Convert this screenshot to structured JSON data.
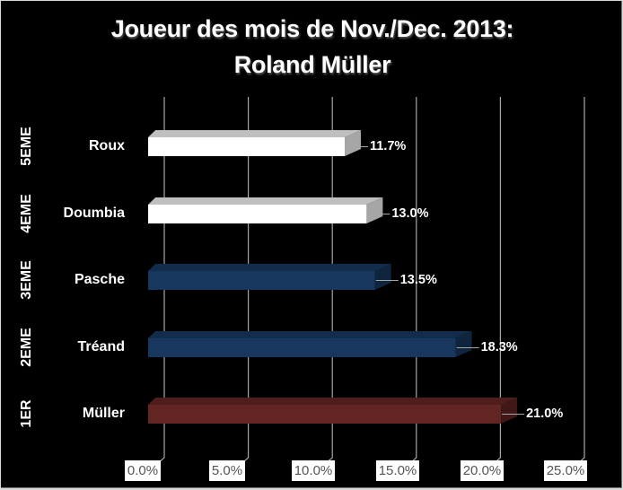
{
  "chart_data": {
    "type": "bar",
    "orientation": "horizontal",
    "style": "3d",
    "title": "Joueur des mois de Nov./Dec. 2013:",
    "subtitle": "Roland Müller",
    "categories": [
      "Müller",
      "Tréand",
      "Pasche",
      "Doumbia",
      "Roux"
    ],
    "ranks": [
      "1ER",
      "2EME",
      "3EME",
      "4EME",
      "5EME"
    ],
    "values": [
      21.0,
      18.3,
      13.5,
      13.0,
      11.7
    ],
    "data_labels": [
      "21.0%",
      "18.3%",
      "13.5%",
      "13.0%",
      "11.7%"
    ],
    "bar_colors": [
      "#632523",
      "#17375e",
      "#17375e",
      "#ffffff",
      "#ffffff"
    ],
    "xlabel": "",
    "ylabel": "",
    "xlim": [
      0,
      25
    ],
    "x_ticks": [
      "0.0%",
      "5.0%",
      "10.0%",
      "15.0%",
      "20.0%",
      "25.0%"
    ],
    "grid": true,
    "legend": "none",
    "background": "#000000"
  },
  "title_line1": "Joueur des mois de Nov./Dec. 2013:",
  "title_line2": "Roland Müller",
  "rows": [
    {
      "rank": "5EME",
      "name": "Roux",
      "label": "11.7%"
    },
    {
      "rank": "4EME",
      "name": "Doumbia",
      "label": "13.0%"
    },
    {
      "rank": "3EME",
      "name": "Pasche",
      "label": "13.5%"
    },
    {
      "rank": "2EME",
      "name": "Tréand",
      "label": "18.3%"
    },
    {
      "rank": "1ER",
      "name": "Müller",
      "label": "21.0%"
    }
  ],
  "ticks": [
    "0.0%",
    "5.0%",
    "10.0%",
    "15.0%",
    "20.0%",
    "25.0%"
  ]
}
